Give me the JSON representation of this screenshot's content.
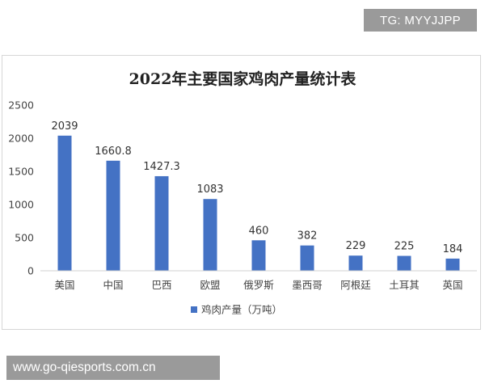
{
  "watermarks": {
    "top": "TG: MYYJJPP",
    "bottom": "www.go-qiesports.com.cn"
  },
  "chart_data": {
    "type": "bar",
    "title": "2022年主要国家鸡肉产量统计表",
    "xlabel": "",
    "ylabel": "",
    "categories": [
      "美国",
      "中国",
      "巴西",
      "欧盟",
      "俄罗斯",
      "墨西哥",
      "阿根廷",
      "土耳其",
      "英国"
    ],
    "series": [
      {
        "name": "鸡肉产量（万吨）",
        "values": [
          2039,
          1660.8,
          1427.3,
          1083,
          460,
          382,
          229,
          225,
          184
        ],
        "data_labels": [
          "2039",
          "1660.8",
          "1427.3",
          "1083",
          "460",
          "382",
          "229",
          "225",
          "184"
        ]
      }
    ],
    "ylim": [
      0,
      2500
    ],
    "yticks": [
      "0",
      "500",
      "1000",
      "1500",
      "2000",
      "2500"
    ],
    "grid": false,
    "legend_position": "bottom",
    "bar_color": "#4472C4"
  }
}
